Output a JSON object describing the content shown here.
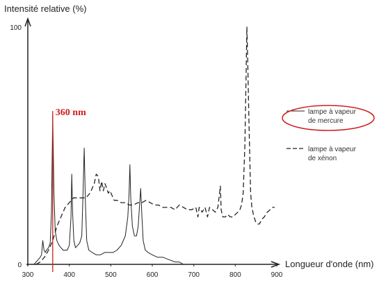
{
  "chart_data": {
    "type": "line",
    "ylabel": "Intensité relative (%)",
    "xlabel": "Longueur d'onde (nm)",
    "xlim": [
      300,
      900
    ],
    "ylim": [
      0,
      100
    ],
    "x_ticks": [
      "300",
      "400",
      "500",
      "600",
      "700",
      "800",
      "900"
    ],
    "y_ticks": [
      "0",
      "100"
    ],
    "annotation": {
      "text": "360 nm",
      "x": 360,
      "color": "#cc1f1f"
    },
    "legend_position": "right",
    "series": [
      {
        "name": "lampe à vapeur de mercure",
        "style": "solid",
        "highlighted": true,
        "points": [
          [
            315,
            0
          ],
          [
            320,
            1
          ],
          [
            325,
            2
          ],
          [
            330,
            3
          ],
          [
            333,
            4
          ],
          [
            336,
            10
          ],
          [
            339,
            6
          ],
          [
            342,
            5
          ],
          [
            345,
            6
          ],
          [
            350,
            7
          ],
          [
            354,
            9
          ],
          [
            357,
            22
          ],
          [
            360,
            63
          ],
          [
            363,
            30
          ],
          [
            366,
            14
          ],
          [
            370,
            10
          ],
          [
            375,
            8
          ],
          [
            380,
            7
          ],
          [
            385,
            6
          ],
          [
            390,
            6
          ],
          [
            395,
            6
          ],
          [
            400,
            8
          ],
          [
            404,
            20
          ],
          [
            406,
            38
          ],
          [
            408,
            22
          ],
          [
            411,
            10
          ],
          [
            415,
            7
          ],
          [
            420,
            8
          ],
          [
            425,
            9
          ],
          [
            430,
            12
          ],
          [
            433,
            30
          ],
          [
            436,
            49
          ],
          [
            439,
            25
          ],
          [
            442,
            10
          ],
          [
            447,
            6
          ],
          [
            455,
            5
          ],
          [
            465,
            4
          ],
          [
            475,
            4
          ],
          [
            485,
            5
          ],
          [
            495,
            5
          ],
          [
            505,
            5
          ],
          [
            515,
            6
          ],
          [
            525,
            8
          ],
          [
            535,
            12
          ],
          [
            541,
            20
          ],
          [
            544,
            30
          ],
          [
            546,
            42
          ],
          [
            548,
            28
          ],
          [
            552,
            16
          ],
          [
            557,
            12
          ],
          [
            562,
            12
          ],
          [
            566,
            16
          ],
          [
            569,
            24
          ],
          [
            572,
            32
          ],
          [
            575,
            20
          ],
          [
            578,
            10
          ],
          [
            583,
            6
          ],
          [
            590,
            5
          ],
          [
            600,
            4
          ],
          [
            612,
            3
          ],
          [
            625,
            3
          ],
          [
            640,
            2
          ],
          [
            655,
            1
          ],
          [
            665,
            1
          ],
          [
            675,
            0
          ]
        ]
      },
      {
        "name": "lampe à vapeur de xénon",
        "style": "dashed",
        "highlighted": false,
        "points": [
          [
            320,
            0
          ],
          [
            330,
            1
          ],
          [
            340,
            3
          ],
          [
            350,
            6
          ],
          [
            360,
            10
          ],
          [
            370,
            16
          ],
          [
            380,
            20
          ],
          [
            390,
            24
          ],
          [
            400,
            26
          ],
          [
            410,
            28
          ],
          [
            420,
            28
          ],
          [
            430,
            28
          ],
          [
            440,
            28
          ],
          [
            450,
            30
          ],
          [
            460,
            34
          ],
          [
            465,
            38
          ],
          [
            470,
            37
          ],
          [
            474,
            31
          ],
          [
            478,
            35
          ],
          [
            482,
            31
          ],
          [
            486,
            34
          ],
          [
            490,
            32
          ],
          [
            494,
            30
          ],
          [
            498,
            31
          ],
          [
            503,
            29
          ],
          [
            508,
            27
          ],
          [
            515,
            27
          ],
          [
            525,
            26
          ],
          [
            535,
            26
          ],
          [
            545,
            25
          ],
          [
            555,
            25
          ],
          [
            565,
            26
          ],
          [
            575,
            26
          ],
          [
            585,
            27
          ],
          [
            595,
            26
          ],
          [
            605,
            25
          ],
          [
            615,
            25
          ],
          [
            625,
            24
          ],
          [
            635,
            24
          ],
          [
            645,
            24
          ],
          [
            655,
            23
          ],
          [
            665,
            25
          ],
          [
            675,
            24
          ],
          [
            685,
            23
          ],
          [
            695,
            23
          ],
          [
            705,
            24
          ],
          [
            710,
            20
          ],
          [
            713,
            24
          ],
          [
            720,
            22
          ],
          [
            727,
            24
          ],
          [
            733,
            20
          ],
          [
            738,
            24
          ],
          [
            745,
            23
          ],
          [
            752,
            22
          ],
          [
            758,
            24
          ],
          [
            762,
            30
          ],
          [
            764,
            33
          ],
          [
            766,
            23
          ],
          [
            770,
            20
          ],
          [
            776,
            20
          ],
          [
            782,
            21
          ],
          [
            788,
            20
          ],
          [
            795,
            20
          ],
          [
            800,
            21
          ],
          [
            806,
            22
          ],
          [
            811,
            23
          ],
          [
            815,
            25
          ],
          [
            819,
            30
          ],
          [
            823,
            50
          ],
          [
            826,
            78
          ],
          [
            828,
            100
          ],
          [
            830,
            86
          ],
          [
            833,
            60
          ],
          [
            837,
            30
          ],
          [
            840,
            24
          ],
          [
            845,
            20
          ],
          [
            849,
            18
          ],
          [
            853,
            17
          ],
          [
            858,
            17
          ],
          [
            864,
            19
          ],
          [
            870,
            20
          ],
          [
            877,
            22
          ],
          [
            884,
            23
          ],
          [
            890,
            24
          ],
          [
            895,
            24
          ]
        ]
      }
    ]
  }
}
